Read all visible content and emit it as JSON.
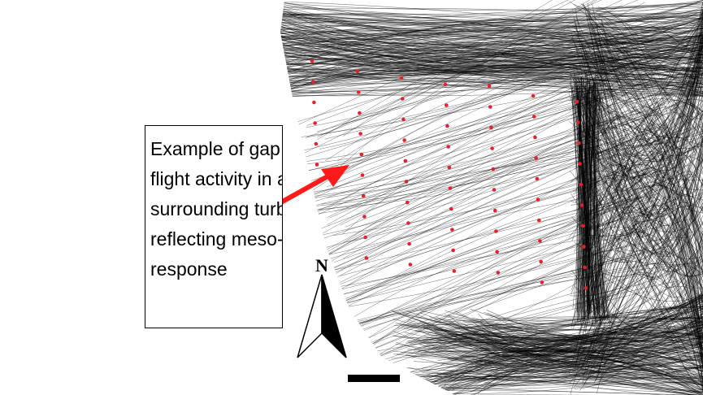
{
  "callout": {
    "lines": [
      "Example of gap in",
      "flight activity in area",
      "surrounding turbine,",
      "reflecting meso-",
      "response"
    ]
  },
  "north_arrow": {
    "label": "N"
  },
  "colors": {
    "flight_tracks": "#000000",
    "turbines": "#e8202a",
    "pointer_arrow": "#ff1a1a",
    "callout_border": "#000000"
  },
  "legend": {
    "turbine_marker": "red-dot",
    "tracks": "flight-track-lines"
  }
}
